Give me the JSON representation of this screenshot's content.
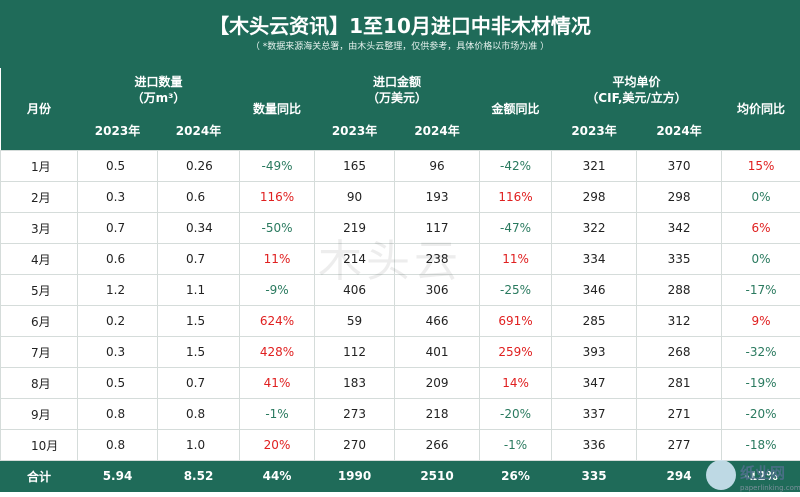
{
  "title": "【木头云资讯】1至10月进口中非木材情况",
  "subtitle": "（ *数据来源海关总署，由木头云整理，仅供参考，具体价格以市场为准 ）",
  "headers": {
    "month": "月份",
    "qty": "进口数量\n（万m³）",
    "qty_yoy": "数量同比",
    "amount": "进口金额\n（万美元）",
    "amount_yoy": "金额同比",
    "price": "平均单价\n（CIF,美元/立方）",
    "price_yoy": "均价同比",
    "y2023": "2023年",
    "y2024": "2024年"
  },
  "rows": [
    {
      "month": "1月",
      "q23": "0.5",
      "q24": "0.26",
      "qy": "-49%",
      "a23": "165",
      "a24": "96",
      "ay": "-42%",
      "p23": "321",
      "p24": "370",
      "py": "15%"
    },
    {
      "month": "2月",
      "q23": "0.3",
      "q24": "0.6",
      "qy": "116%",
      "a23": "90",
      "a24": "193",
      "ay": "116%",
      "p23": "298",
      "p24": "298",
      "py": "0%"
    },
    {
      "month": "3月",
      "q23": "0.7",
      "q24": "0.34",
      "qy": "-50%",
      "a23": "219",
      "a24": "117",
      "ay": "-47%",
      "p23": "322",
      "p24": "342",
      "py": "6%"
    },
    {
      "month": "4月",
      "q23": "0.6",
      "q24": "0.7",
      "qy": "11%",
      "a23": "214",
      "a24": "238",
      "ay": "11%",
      "p23": "334",
      "p24": "335",
      "py": "0%"
    },
    {
      "month": "5月",
      "q23": "1.2",
      "q24": "1.1",
      "qy": "-9%",
      "a23": "406",
      "a24": "306",
      "ay": "-25%",
      "p23": "346",
      "p24": "288",
      "py": "-17%"
    },
    {
      "month": "6月",
      "q23": "0.2",
      "q24": "1.5",
      "qy": "624%",
      "a23": "59",
      "a24": "466",
      "ay": "691%",
      "p23": "285",
      "p24": "312",
      "py": "9%"
    },
    {
      "month": "7月",
      "q23": "0.3",
      "q24": "1.5",
      "qy": "428%",
      "a23": "112",
      "a24": "401",
      "ay": "259%",
      "p23": "393",
      "p24": "268",
      "py": "-32%"
    },
    {
      "month": "8月",
      "q23": "0.5",
      "q24": "0.7",
      "qy": "41%",
      "a23": "183",
      "a24": "209",
      "ay": "14%",
      "p23": "347",
      "p24": "281",
      "py": "-19%"
    },
    {
      "month": "9月",
      "q23": "0.8",
      "q24": "0.8",
      "qy": "-1%",
      "a23": "273",
      "a24": "218",
      "ay": "-20%",
      "p23": "337",
      "p24": "271",
      "py": "-20%"
    },
    {
      "month": "10月",
      "q23": "0.8",
      "q24": "1.0",
      "qy": "20%",
      "a23": "270",
      "a24": "266",
      "ay": "-1%",
      "p23": "336",
      "p24": "277",
      "py": "-18%"
    }
  ],
  "total": {
    "month": "合计",
    "q23": "5.94",
    "q24": "8.52",
    "qy": "44%",
    "a23": "1990",
    "a24": "2510",
    "ay": "26%",
    "p23": "335",
    "p24": "294",
    "py": "-12%"
  },
  "watermark": "木头云",
  "logo_text": "纸业网",
  "logo_small": "paperlinking.com",
  "colors": {
    "header_bg": "#1f6b59",
    "positive": "#e02020",
    "negative": "#2a7a5f"
  }
}
